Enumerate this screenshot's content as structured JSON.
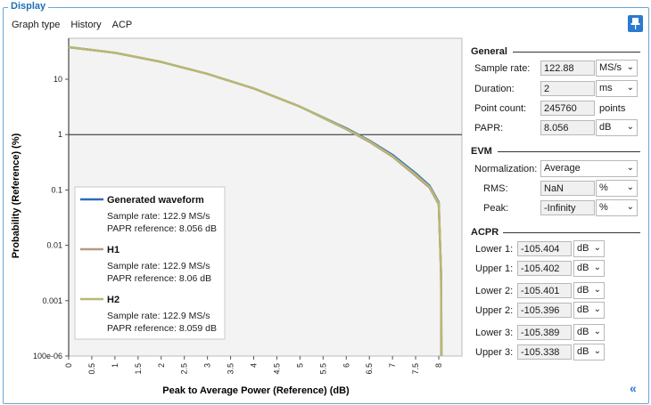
{
  "panel": {
    "title": "Display"
  },
  "menu": [
    "Graph type",
    "History",
    "ACP"
  ],
  "chart_data": {
    "type": "line",
    "xlabel": "Peak to Average Power (Reference) (dB)",
    "ylabel": "Probability (Reference) (%)",
    "x_ticks": [
      "0",
      "0.5",
      "1",
      "1.5",
      "2",
      "2.5",
      "3",
      "3.5",
      "4",
      "4.5",
      "5",
      "5.5",
      "6",
      "6.5",
      "7",
      "7.5",
      "8"
    ],
    "y_ticks": [
      "10",
      "1",
      "0.1",
      "0.01",
      "0.001",
      "100e-06"
    ],
    "y_scale": "log",
    "xlim": [
      0,
      8.5
    ],
    "ylim": [
      0.0001,
      55
    ],
    "series": [
      {
        "name": "Generated waveform",
        "color": "#2e6bb8",
        "x": [
          0,
          1,
          2,
          3,
          4,
          5,
          6,
          6.5,
          7,
          7.5,
          7.8,
          8,
          8.05,
          8.056
        ],
        "y": [
          38,
          30,
          20.5,
          12.5,
          6.8,
          3.2,
          1.3,
          0.78,
          0.43,
          0.2,
          0.12,
          0.06,
          0.003,
          0.0001
        ]
      },
      {
        "name": "H1",
        "color": "#b59a8a",
        "x": [
          0,
          1,
          2,
          3,
          4,
          5,
          6,
          6.5,
          7,
          7.5,
          7.8,
          8,
          8.05,
          8.06
        ],
        "y": [
          38,
          30,
          20.5,
          12.5,
          6.8,
          3.2,
          1.25,
          0.74,
          0.4,
          0.18,
          0.11,
          0.055,
          0.003,
          0.0001
        ]
      },
      {
        "name": "H2",
        "color": "#b8b870",
        "x": [
          0,
          1,
          2,
          3,
          4,
          5,
          6,
          6.5,
          7,
          7.5,
          7.8,
          8,
          8.05,
          8.059
        ],
        "y": [
          38,
          30,
          20.5,
          12.5,
          6.8,
          3.2,
          1.27,
          0.76,
          0.41,
          0.19,
          0.115,
          0.058,
          0.003,
          0.0001
        ]
      }
    ],
    "legend": [
      {
        "name": "Generated waveform",
        "color": "#2e6bb8",
        "line1": "Sample rate: 122.9 MS/s",
        "line2": "PAPR reference: 8.056 dB"
      },
      {
        "name": "H1",
        "color": "#b59a8a",
        "line1": "Sample rate: 122.9 MS/s",
        "line2": "PAPR reference: 8.06 dB"
      },
      {
        "name": "H2",
        "color": "#b8b870",
        "line1": "Sample rate: 122.9 MS/s",
        "line2": "PAPR reference: 8.059 dB"
      }
    ]
  },
  "general": {
    "title": "General",
    "sample_rate_label": "Sample rate:",
    "sample_rate": "122.88",
    "sample_rate_unit": "MS/s",
    "duration_label": "Duration:",
    "duration": "2",
    "duration_unit": "ms",
    "point_count_label": "Point count:",
    "point_count": "245760",
    "point_count_unit": "points",
    "papr_label": "PAPR:",
    "papr": "8.056",
    "papr_unit": "dB"
  },
  "evm": {
    "title": "EVM",
    "normalization_label": "Normalization:",
    "normalization": "Average",
    "rms_label": "RMS:",
    "rms": "NaN",
    "rms_unit": "%",
    "peak_label": "Peak:",
    "peak": "-Infinity",
    "peak_unit": "%"
  },
  "acpr": {
    "title": "ACPR",
    "rows": [
      {
        "label": "Lower 1:",
        "value": "-105.404",
        "unit": "dB"
      },
      {
        "label": "Upper 1:",
        "value": "-105.402",
        "unit": "dB"
      },
      {
        "label": "Lower 2:",
        "value": "-105.401",
        "unit": "dB"
      },
      {
        "label": "Upper 2:",
        "value": "-105.396",
        "unit": "dB"
      },
      {
        "label": "Lower 3:",
        "value": "-105.389",
        "unit": "dB"
      },
      {
        "label": "Upper 3:",
        "value": "-105.338",
        "unit": "dB"
      }
    ]
  },
  "icons": {
    "pin": "pin-icon",
    "collapse": "double-chevron-left-icon"
  }
}
